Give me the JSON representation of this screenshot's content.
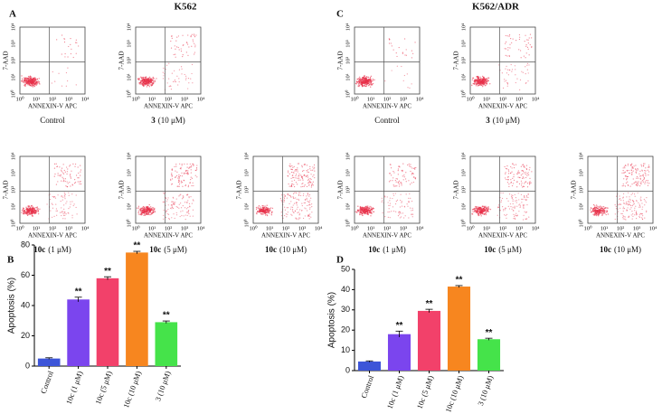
{
  "panels": [
    {
      "letter": "A",
      "title": "K562"
    },
    {
      "letter": "C",
      "title": "K562/ADR"
    }
  ],
  "flow": {
    "y_label": "7-AAD",
    "x_label": "ANNEXIN-V APC",
    "ticks": [
      "10⁰",
      "10¹",
      "10²",
      "10³",
      "10⁴"
    ],
    "captions": [
      {
        "text": "Control"
      },
      {
        "bold": "3",
        "text": "(10 μM)"
      },
      {
        "bold": "10c",
        "text": "(1 μM)"
      },
      {
        "bold": "10c",
        "text": "(5 μM)"
      },
      {
        "bold": "10c",
        "text": "(10 μM)"
      }
    ]
  },
  "chart_data": [
    {
      "type": "bar",
      "panel_label": "B",
      "y_label": "Apoptosis (%)",
      "categories": [
        "Control",
        "10c (1 μM)",
        "10c (5 μM)",
        "10c (10 μM)",
        "3 (10 μM)"
      ],
      "values": [
        5,
        44,
        58,
        75,
        29
      ],
      "errors": [
        0.5,
        1.5,
        1,
        0.8,
        0.8
      ],
      "value_annotations": [
        null,
        "**",
        "**",
        "**",
        "**"
      ],
      "colors": [
        "#3d55d8",
        "#7b45ee",
        "#f2416a",
        "#f7861f",
        "#45e34a"
      ],
      "ylim": [
        0,
        80
      ],
      "yticks": [
        0,
        20,
        40,
        60,
        80
      ]
    },
    {
      "type": "bar",
      "panel_label": "D",
      "y_label": "Apoptosis (%)",
      "categories": [
        "Control",
        "10c (1 μM)",
        "10c (5 μM)",
        "10c (10 μM)",
        "3 (10 μM)"
      ],
      "values": [
        4.5,
        18,
        29.5,
        41.5,
        15.5
      ],
      "errors": [
        0.3,
        1.5,
        0.8,
        0.5,
        0.5
      ],
      "value_annotations": [
        null,
        "**",
        "**",
        "**",
        "**"
      ],
      "colors": [
        "#3d55d8",
        "#7b45ee",
        "#f2416a",
        "#f7861f",
        "#45e34a"
      ],
      "ylim": [
        0,
        50
      ],
      "yticks": [
        0,
        10,
        20,
        30,
        40,
        50
      ]
    }
  ]
}
